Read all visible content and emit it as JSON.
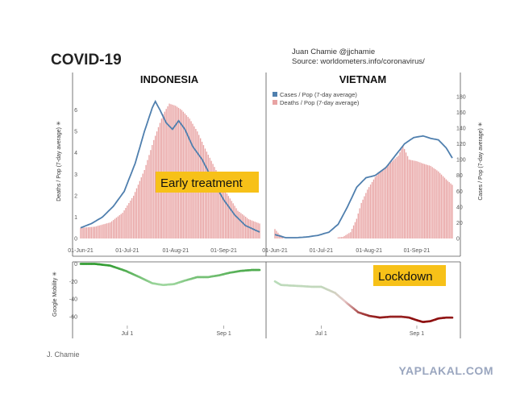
{
  "page": {
    "title": "COVID-19",
    "author": "Juan Chamie @jjchamie",
    "source": "Source: worldometers.info/coronavirus/",
    "footer": "J. Chamie",
    "watermark": "YAPLAKAL.COM"
  },
  "colors": {
    "cases_line": "#4f7fae",
    "deaths_bars": "#e8a3a3",
    "note_box": "#f7c118",
    "mobility_green": "#2e9a2e",
    "mobility_red": "#8e1010"
  },
  "chart_data": [
    {
      "type": "bar",
      "panel": "INDONESIA",
      "title": "INDONESIA",
      "ylabel": "Deaths / Pop (7-day average) ✳",
      "x_ticks": [
        "01-Jun-21",
        "01-Jul-21",
        "01-Aug-21",
        "01-Sep-21"
      ],
      "x_range": [
        "2021-06-01",
        "2021-09-24"
      ],
      "ylim": [
        0,
        7
      ],
      "y_ticks": [
        0,
        1,
        2,
        3,
        4,
        5,
        6
      ],
      "annotation": "Early treatment",
      "series": [
        {
          "name": "Deaths / Pop (7-day average)",
          "kind": "bar",
          "points": [
            [
              "2021-06-01",
              0.5
            ],
            [
              "2021-06-10",
              0.55
            ],
            [
              "2021-06-20",
              0.75
            ],
            [
              "2021-06-28",
              1.2
            ],
            [
              "2021-07-05",
              2.0
            ],
            [
              "2021-07-12",
              3.2
            ],
            [
              "2021-07-18",
              4.6
            ],
            [
              "2021-07-24",
              5.8
            ],
            [
              "2021-07-28",
              6.3
            ],
            [
              "2021-08-01",
              6.2
            ],
            [
              "2021-08-05",
              6.0
            ],
            [
              "2021-08-10",
              5.6
            ],
            [
              "2021-08-15",
              5.0
            ],
            [
              "2021-08-20",
              4.2
            ],
            [
              "2021-08-27",
              3.2
            ],
            [
              "2021-09-03",
              2.1
            ],
            [
              "2021-09-10",
              1.3
            ],
            [
              "2021-09-17",
              0.9
            ],
            [
              "2021-09-24",
              0.7
            ]
          ]
        },
        {
          "name": "Cases / Pop (7-day average)",
          "kind": "line",
          "points": [
            [
              "2021-06-01",
              0.5
            ],
            [
              "2021-06-08",
              0.7
            ],
            [
              "2021-06-15",
              1.0
            ],
            [
              "2021-06-22",
              1.5
            ],
            [
              "2021-06-29",
              2.2
            ],
            [
              "2021-07-06",
              3.5
            ],
            [
              "2021-07-12",
              5.0
            ],
            [
              "2021-07-17",
              6.1
            ],
            [
              "2021-07-19",
              6.4
            ],
            [
              "2021-07-22",
              6.0
            ],
            [
              "2021-07-26",
              5.4
            ],
            [
              "2021-07-30",
              5.1
            ],
            [
              "2021-08-03",
              5.5
            ],
            [
              "2021-08-07",
              5.1
            ],
            [
              "2021-08-12",
              4.3
            ],
            [
              "2021-08-18",
              3.7
            ],
            [
              "2021-08-25",
              2.7
            ],
            [
              "2021-09-01",
              1.8
            ],
            [
              "2021-09-08",
              1.1
            ],
            [
              "2021-09-15",
              0.6
            ],
            [
              "2021-09-24",
              0.3
            ]
          ]
        }
      ]
    },
    {
      "type": "bar",
      "panel": "VIETNAM",
      "title": "VIETNAM",
      "ylabel": "Cases / Pop (7-day average) ✳",
      "x_ticks": [
        "01-Jun-21",
        "01-Jul-21",
        "01-Aug-21",
        "01-Sep-21"
      ],
      "x_range": [
        "2021-06-01",
        "2021-09-24"
      ],
      "ylim": [
        0,
        190
      ],
      "y_ticks": [
        0,
        20,
        40,
        60,
        80,
        100,
        120,
        140,
        160,
        180
      ],
      "legend": [
        "Cases / Pop (7-day average)",
        "Deaths / Pop (7-day average)"
      ],
      "legend_position": "top-left",
      "series": [
        {
          "name": "Deaths / Pop (7-day average)",
          "kind": "bar",
          "points": [
            [
              "2021-06-01",
              12
            ],
            [
              "2021-06-04",
              5
            ],
            [
              "2021-06-08",
              0
            ],
            [
              "2021-07-01",
              0
            ],
            [
              "2021-07-05",
              0
            ],
            [
              "2021-07-10",
              1
            ],
            [
              "2021-07-15",
              2
            ],
            [
              "2021-07-20",
              8
            ],
            [
              "2021-07-24",
              25
            ],
            [
              "2021-07-27",
              45
            ],
            [
              "2021-07-31",
              62
            ],
            [
              "2021-08-05",
              78
            ],
            [
              "2021-08-10",
              88
            ],
            [
              "2021-08-15",
              96
            ],
            [
              "2021-08-20",
              105
            ],
            [
              "2021-08-23",
              118
            ],
            [
              "2021-08-27",
              100
            ],
            [
              "2021-09-01",
              98
            ],
            [
              "2021-09-05",
              95
            ],
            [
              "2021-09-10",
              92
            ],
            [
              "2021-09-15",
              85
            ],
            [
              "2021-09-20",
              75
            ],
            [
              "2021-09-24",
              68
            ]
          ]
        },
        {
          "name": "Cases / Pop (7-day average)",
          "kind": "line",
          "points": [
            [
              "2021-06-01",
              5
            ],
            [
              "2021-06-08",
              1
            ],
            [
              "2021-06-15",
              1
            ],
            [
              "2021-06-22",
              2
            ],
            [
              "2021-06-29",
              4
            ],
            [
              "2021-07-06",
              8
            ],
            [
              "2021-07-12",
              18
            ],
            [
              "2021-07-18",
              40
            ],
            [
              "2021-07-24",
              65
            ],
            [
              "2021-07-30",
              77
            ],
            [
              "2021-08-05",
              80
            ],
            [
              "2021-08-12",
              90
            ],
            [
              "2021-08-18",
              105
            ],
            [
              "2021-08-24",
              120
            ],
            [
              "2021-08-30",
              128
            ],
            [
              "2021-09-05",
              130
            ],
            [
              "2021-09-10",
              127
            ],
            [
              "2021-09-15",
              125
            ],
            [
              "2021-09-20",
              115
            ],
            [
              "2021-09-24",
              102
            ]
          ]
        }
      ]
    },
    {
      "type": "line",
      "panel": "INDONESIA",
      "ylabel": "Google Mobility ✳",
      "x_ticks": [
        "Jul 1",
        "Sep 1"
      ],
      "x_range": [
        "2021-06-01",
        "2021-09-24"
      ],
      "ylim": [
        -70,
        5
      ],
      "y_ticks": [
        0,
        -20,
        -40,
        -60
      ],
      "series": [
        {
          "name": "Google Mobility",
          "points": [
            [
              "2021-06-01",
              0
            ],
            [
              "2021-06-10",
              0
            ],
            [
              "2021-06-20",
              -2
            ],
            [
              "2021-06-30",
              -8
            ],
            [
              "2021-07-10",
              -16
            ],
            [
              "2021-07-17",
              -22
            ],
            [
              "2021-07-24",
              -24
            ],
            [
              "2021-07-31",
              -23
            ],
            [
              "2021-08-07",
              -19
            ],
            [
              "2021-08-15",
              -15
            ],
            [
              "2021-08-22",
              -15
            ],
            [
              "2021-08-29",
              -13
            ],
            [
              "2021-09-05",
              -10
            ],
            [
              "2021-09-12",
              -8
            ],
            [
              "2021-09-19",
              -7
            ],
            [
              "2021-09-24",
              -7
            ]
          ]
        }
      ]
    },
    {
      "type": "line",
      "panel": "VIETNAM",
      "x_ticks": [
        "Jul 1",
        "Sep 1"
      ],
      "x_range": [
        "2021-06-01",
        "2021-09-24"
      ],
      "ylim": [
        -70,
        5
      ],
      "annotation": "Lockdown",
      "series": [
        {
          "name": "Google Mobility",
          "points": [
            [
              "2021-06-01",
              -20
            ],
            [
              "2021-06-05",
              -24
            ],
            [
              "2021-06-15",
              -25
            ],
            [
              "2021-06-25",
              -26
            ],
            [
              "2021-07-01",
              -26
            ],
            [
              "2021-07-10",
              -33
            ],
            [
              "2021-07-18",
              -45
            ],
            [
              "2021-07-25",
              -55
            ],
            [
              "2021-08-01",
              -59
            ],
            [
              "2021-08-08",
              -61
            ],
            [
              "2021-08-15",
              -60
            ],
            [
              "2021-08-22",
              -60
            ],
            [
              "2021-08-27",
              -61
            ],
            [
              "2021-09-01",
              -64
            ],
            [
              "2021-09-05",
              -66
            ],
            [
              "2021-09-10",
              -65
            ],
            [
              "2021-09-15",
              -62
            ],
            [
              "2021-09-20",
              -61
            ],
            [
              "2021-09-24",
              -61
            ]
          ]
        }
      ]
    }
  ]
}
